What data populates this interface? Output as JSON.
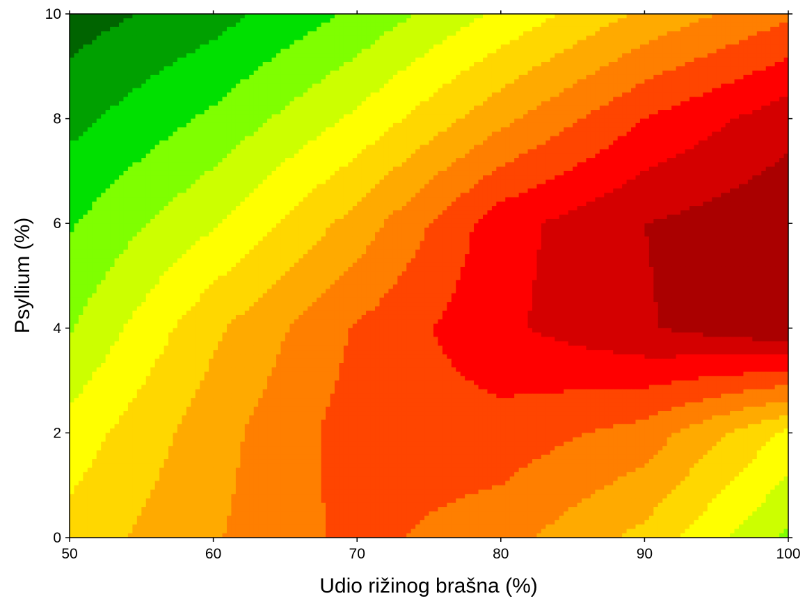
{
  "chart_data": {
    "type": "contour",
    "title": "",
    "xlabel": "Udio rižinog brašna (%)",
    "ylabel": "Psyllium (%)",
    "xlim": [
      50,
      100
    ],
    "ylim": [
      0,
      10
    ],
    "xticks": [
      50,
      60,
      70,
      80,
      90,
      100
    ],
    "yticks": [
      0,
      2,
      4,
      6,
      8,
      10
    ],
    "xtick_labels": [
      "50",
      "60",
      "70",
      "80",
      "90",
      "100"
    ],
    "ytick_labels": [
      "0",
      "2",
      "4",
      "6",
      "8",
      "10"
    ],
    "grid": false,
    "legend": "none",
    "colormap": [
      "#006400",
      "#00a000",
      "#00e000",
      "#7fff00",
      "#ccff00",
      "#ffff00",
      "#ffd700",
      "#ffaa00",
      "#ff7f00",
      "#ff4500",
      "#ff0000",
      "#d40000",
      "#aa0000",
      "#800000"
    ],
    "surface_samples": {
      "x": [
        50,
        60,
        70,
        80,
        90,
        100
      ],
      "y": [
        0,
        2,
        4,
        6,
        8,
        10
      ],
      "z_level_index": [
        [
          6.4,
          7.9,
          9.3,
          8.4,
          6.7,
          3.8
        ],
        [
          5.4,
          7.6,
          9.5,
          9.6,
          8.6,
          5.8
        ],
        [
          3.9,
          6.8,
          9.1,
          10.8,
          11.9,
          12.9
        ],
        [
          2.9,
          4.9,
          7.4,
          10.6,
          12.0,
          12.8
        ],
        [
          1.7,
          3.2,
          5.2,
          7.7,
          10.0,
          11.6
        ],
        [
          0.5,
          1.6,
          3.2,
          5.2,
          7.2,
          8.8
        ]
      ]
    }
  }
}
